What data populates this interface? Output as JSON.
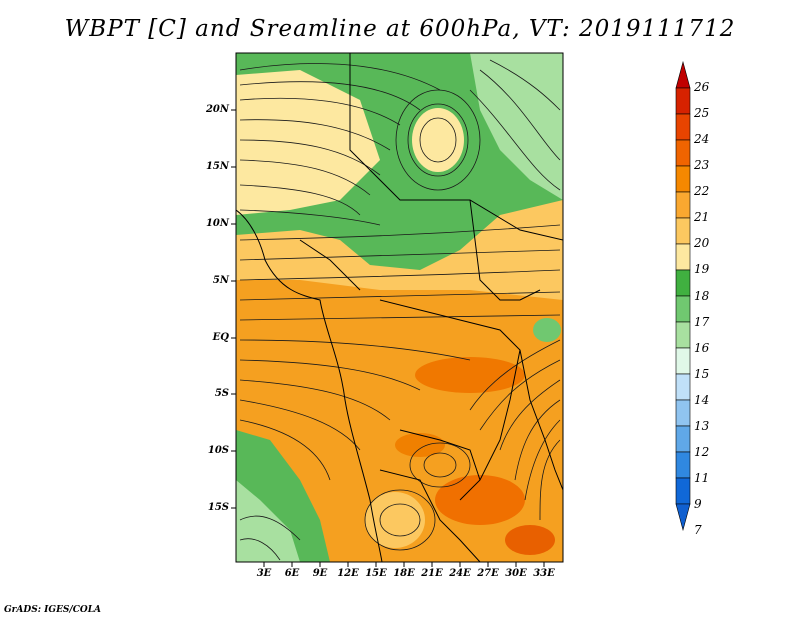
{
  "title": "WBPT [C] and Sreamline at 600hPa, VT: 2019111712",
  "credit": "GrADS: IGES/COLA",
  "lat_labels": [
    "20N",
    "15N",
    "10N",
    "5N",
    "EQ",
    "5S",
    "10S",
    "15S"
  ],
  "lon_labels": [
    "3E",
    "6E",
    "9E",
    "12E",
    "15E",
    "18E",
    "21E",
    "24E",
    "27E",
    "30E",
    "33E"
  ],
  "colorbar": {
    "labels": [
      "26",
      "25",
      "24",
      "23",
      "22",
      "21",
      "20",
      "19",
      "18",
      "17",
      "16",
      "15",
      "14",
      "13",
      "12",
      "11",
      "9",
      "7"
    ],
    "colors": [
      "#c00000",
      "#d62200",
      "#e84400",
      "#f06400",
      "#f58800",
      "#faa830",
      "#fcc860",
      "#fde8a0",
      "#40b040",
      "#70c870",
      "#a8e0a0",
      "#e0f8e8",
      "#c0e0f8",
      "#90c4f0",
      "#60a8e8",
      "#3088e0",
      "#1068d8",
      "#1060d0"
    ]
  },
  "map": {
    "region": "Central/East Africa",
    "variable": "WBPT [C]",
    "level": "600hPa",
    "valid_time": "2019111712"
  }
}
